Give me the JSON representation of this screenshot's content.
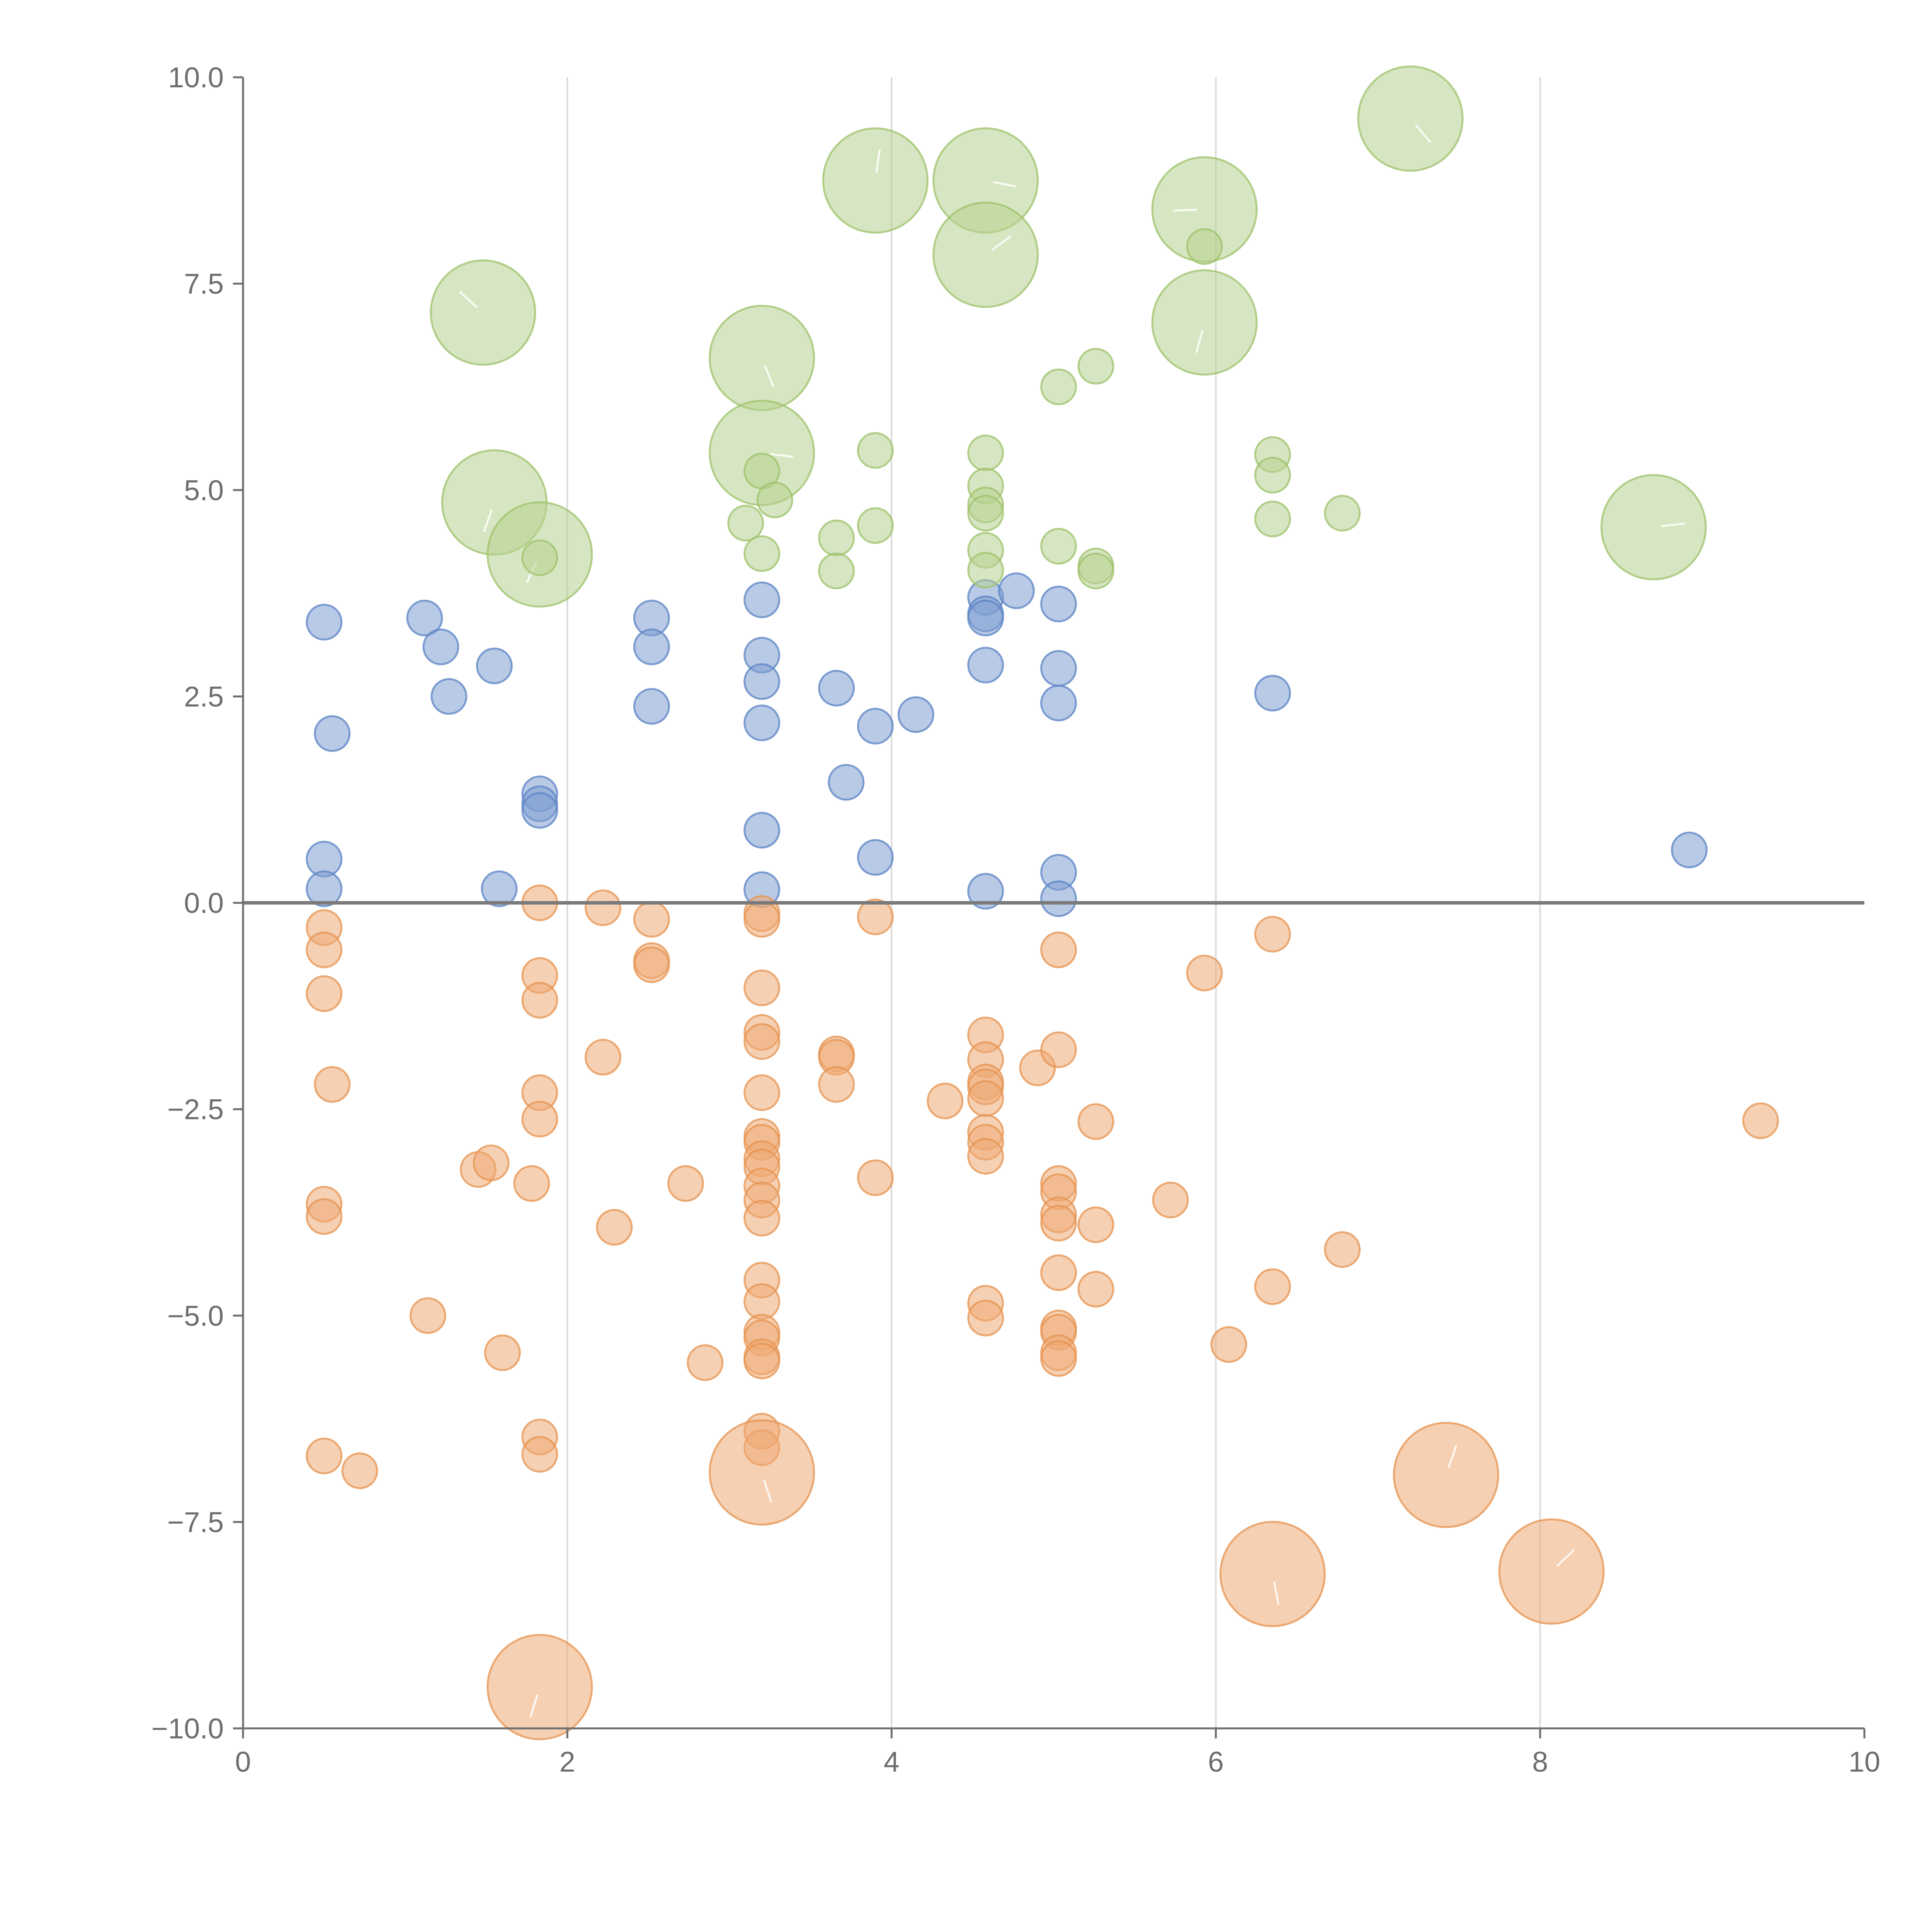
{
  "chart_data": {
    "type": "scatter",
    "title": "",
    "xlabel": "",
    "ylabel": "",
    "xlim": [
      0,
      10
    ],
    "ylim": [
      -10,
      10
    ],
    "x_ticks": [
      "0",
      "2",
      "4",
      "6",
      "8",
      "10"
    ],
    "y_ticks": [
      "−10.0",
      "−7.5",
      "−5.0",
      "−2.5",
      "0.0",
      "2.5",
      "5.0",
      "7.5",
      "10.0"
    ],
    "grid": "vertical at x = 2, 4, 6, 8",
    "reference_line": 0,
    "series": [
      {
        "name": "blue",
        "fill": "#7f9fd1",
        "stroke": "#5b83c4",
        "points": [
          [
            0.5,
            3.4,
            1
          ],
          [
            0.55,
            2.05,
            1
          ],
          [
            1.12,
            3.45,
            1
          ],
          [
            1.22,
            3.1,
            1
          ],
          [
            1.27,
            2.5,
            1
          ],
          [
            1.55,
            2.87,
            1
          ],
          [
            0.5,
            0.53,
            1
          ],
          [
            0.5,
            0.17,
            1
          ],
          [
            1.58,
            0.17,
            1
          ],
          [
            1.83,
            1.32,
            1
          ],
          [
            1.83,
            1.2,
            1
          ],
          [
            1.83,
            1.12,
            1
          ],
          [
            2.52,
            3.45,
            1
          ],
          [
            2.52,
            3.1,
            1
          ],
          [
            2.52,
            2.38,
            1
          ],
          [
            3.2,
            3.67,
            1
          ],
          [
            3.2,
            3.0,
            1
          ],
          [
            3.2,
            2.68,
            1
          ],
          [
            3.2,
            2.18,
            1
          ],
          [
            3.2,
            0.88,
            1
          ],
          [
            3.2,
            0.16,
            1
          ],
          [
            3.66,
            2.6,
            1
          ],
          [
            3.72,
            1.46,
            1
          ],
          [
            3.9,
            2.14,
            1
          ],
          [
            3.9,
            0.55,
            1
          ],
          [
            4.15,
            2.28,
            1
          ],
          [
            4.58,
            3.7,
            1
          ],
          [
            4.58,
            3.5,
            1
          ],
          [
            4.58,
            3.45,
            1
          ],
          [
            4.58,
            2.88,
            1
          ],
          [
            4.58,
            0.14,
            1
          ],
          [
            4.77,
            3.78,
            1
          ],
          [
            5.03,
            3.62,
            1
          ],
          [
            5.03,
            2.84,
            1
          ],
          [
            5.03,
            2.42,
            1
          ],
          [
            5.03,
            0.37,
            1
          ],
          [
            5.03,
            0.05,
            1
          ],
          [
            6.35,
            2.54,
            1
          ],
          [
            8.92,
            0.64,
            1
          ]
        ]
      },
      {
        "name": "orange",
        "fill": "#efaa75",
        "stroke": "#e5934f",
        "points": [
          [
            0.5,
            -0.3,
            1
          ],
          [
            0.5,
            -0.57,
            1
          ],
          [
            0.5,
            -1.1,
            1
          ],
          [
            0.55,
            -2.2,
            1
          ],
          [
            0.5,
            -3.65,
            1
          ],
          [
            0.5,
            -3.8,
            1
          ],
          [
            0.5,
            -6.7,
            1
          ],
          [
            0.72,
            -6.88,
            1
          ],
          [
            1.14,
            -5.0,
            1
          ],
          [
            1.45,
            -3.23,
            1
          ],
          [
            1.53,
            -3.15,
            1
          ],
          [
            1.6,
            -5.45,
            1
          ],
          [
            1.78,
            -3.4,
            1
          ],
          [
            1.83,
            0.0,
            1
          ],
          [
            1.83,
            -0.88,
            1
          ],
          [
            1.83,
            -1.18,
            1
          ],
          [
            1.83,
            -2.3,
            1
          ],
          [
            1.83,
            -2.62,
            1
          ],
          [
            1.83,
            -6.47,
            1
          ],
          [
            1.83,
            -6.68,
            1
          ],
          [
            2.22,
            -0.06,
            1
          ],
          [
            2.22,
            -1.87,
            1
          ],
          [
            2.29,
            -3.93,
            1
          ],
          [
            2.52,
            -0.2,
            1
          ],
          [
            2.52,
            -0.7,
            1
          ],
          [
            2.52,
            -0.75,
            1
          ],
          [
            2.73,
            -3.4,
            1
          ],
          [
            2.85,
            -5.57,
            1
          ],
          [
            3.2,
            -0.13,
            1
          ],
          [
            3.2,
            -0.2,
            1
          ],
          [
            3.2,
            -1.03,
            1
          ],
          [
            3.2,
            -1.57,
            1
          ],
          [
            3.2,
            -1.68,
            1
          ],
          [
            3.2,
            -2.3,
            1
          ],
          [
            3.2,
            -2.83,
            1
          ],
          [
            3.2,
            -2.9,
            1
          ],
          [
            3.2,
            -3.1,
            1
          ],
          [
            3.2,
            -3.2,
            1
          ],
          [
            3.2,
            -3.43,
            1
          ],
          [
            3.2,
            -3.6,
            1
          ],
          [
            3.2,
            -3.82,
            1
          ],
          [
            3.2,
            -4.57,
            1
          ],
          [
            3.2,
            -4.83,
            1
          ],
          [
            3.2,
            -5.2,
            1
          ],
          [
            3.2,
            -5.27,
            1
          ],
          [
            3.2,
            -5.5,
            1
          ],
          [
            3.2,
            -5.55,
            1
          ],
          [
            3.2,
            -6.4,
            1
          ],
          [
            3.2,
            -6.6,
            1
          ],
          [
            3.66,
            -1.83,
            1
          ],
          [
            3.66,
            -1.87,
            1
          ],
          [
            3.66,
            -2.2,
            1
          ],
          [
            3.9,
            -0.17,
            1
          ],
          [
            3.9,
            -3.33,
            1
          ],
          [
            4.33,
            -2.4,
            1
          ],
          [
            4.58,
            -1.6,
            1
          ],
          [
            4.58,
            -1.9,
            1
          ],
          [
            4.58,
            -2.17,
            1
          ],
          [
            4.58,
            -2.23,
            1
          ],
          [
            4.58,
            -2.37,
            1
          ],
          [
            4.58,
            -2.78,
            1
          ],
          [
            4.58,
            -2.9,
            1
          ],
          [
            4.58,
            -3.07,
            1
          ],
          [
            4.58,
            -4.85,
            1
          ],
          [
            4.58,
            -5.03,
            1
          ],
          [
            4.9,
            -2.0,
            1
          ],
          [
            5.03,
            -0.57,
            1
          ],
          [
            5.03,
            -1.78,
            1
          ],
          [
            5.03,
            -3.4,
            1
          ],
          [
            5.03,
            -3.5,
            1
          ],
          [
            5.03,
            -3.78,
            1
          ],
          [
            5.03,
            -3.88,
            1
          ],
          [
            5.03,
            -4.48,
            1
          ],
          [
            5.03,
            -5.15,
            1
          ],
          [
            5.03,
            -5.2,
            1
          ],
          [
            5.03,
            -5.45,
            1
          ],
          [
            5.03,
            -5.52,
            1
          ],
          [
            5.26,
            -2.65,
            1
          ],
          [
            5.26,
            -3.9,
            1
          ],
          [
            5.26,
            -4.68,
            1
          ],
          [
            5.72,
            -3.6,
            1
          ],
          [
            5.93,
            -0.85,
            1
          ],
          [
            6.08,
            -5.35,
            1
          ],
          [
            6.35,
            -0.38,
            1
          ],
          [
            6.35,
            -4.65,
            1
          ],
          [
            6.78,
            -4.2,
            1
          ],
          [
            9.36,
            -2.64,
            1
          ],
          [
            3.2,
            -6.9,
            3
          ],
          [
            7.42,
            -6.93,
            3
          ],
          [
            6.35,
            -8.13,
            3
          ],
          [
            8.07,
            -8.1,
            3
          ],
          [
            1.83,
            -9.5,
            3
          ]
        ]
      },
      {
        "name": "green",
        "fill": "#b7d28f",
        "stroke": "#9cc26a",
        "points": [
          [
            7.2,
            9.5,
            3
          ],
          [
            3.9,
            8.75,
            3
          ],
          [
            4.58,
            8.75,
            3
          ],
          [
            4.58,
            7.85,
            3
          ],
          [
            5.93,
            8.4,
            3
          ],
          [
            5.93,
            7.03,
            3
          ],
          [
            1.48,
            7.15,
            3
          ],
          [
            3.2,
            6.6,
            3
          ],
          [
            3.2,
            5.45,
            3
          ],
          [
            1.55,
            4.85,
            3
          ],
          [
            1.83,
            4.22,
            3
          ],
          [
            8.7,
            4.55,
            3
          ],
          [
            5.93,
            7.95,
            1
          ],
          [
            5.03,
            6.25,
            1
          ],
          [
            5.26,
            6.5,
            1
          ],
          [
            3.9,
            5.48,
            1
          ],
          [
            3.2,
            5.23,
            1
          ],
          [
            3.28,
            4.88,
            1
          ],
          [
            3.1,
            4.6,
            1
          ],
          [
            3.2,
            4.23,
            1
          ],
          [
            3.66,
            4.42,
            1
          ],
          [
            3.66,
            4.02,
            1
          ],
          [
            3.9,
            4.57,
            1
          ],
          [
            4.58,
            5.45,
            1
          ],
          [
            4.58,
            5.05,
            1
          ],
          [
            4.58,
            4.82,
            1
          ],
          [
            4.58,
            4.72,
            1
          ],
          [
            4.58,
            4.27,
            1
          ],
          [
            4.58,
            4.03,
            1
          ],
          [
            5.03,
            4.32,
            1
          ],
          [
            5.26,
            4.08,
            1
          ],
          [
            5.26,
            4.02,
            1
          ],
          [
            6.35,
            5.43,
            1
          ],
          [
            6.35,
            5.18,
            1
          ],
          [
            6.35,
            4.65,
            1
          ],
          [
            6.78,
            4.72,
            1
          ],
          [
            1.83,
            4.18,
            1
          ]
        ]
      }
    ]
  }
}
